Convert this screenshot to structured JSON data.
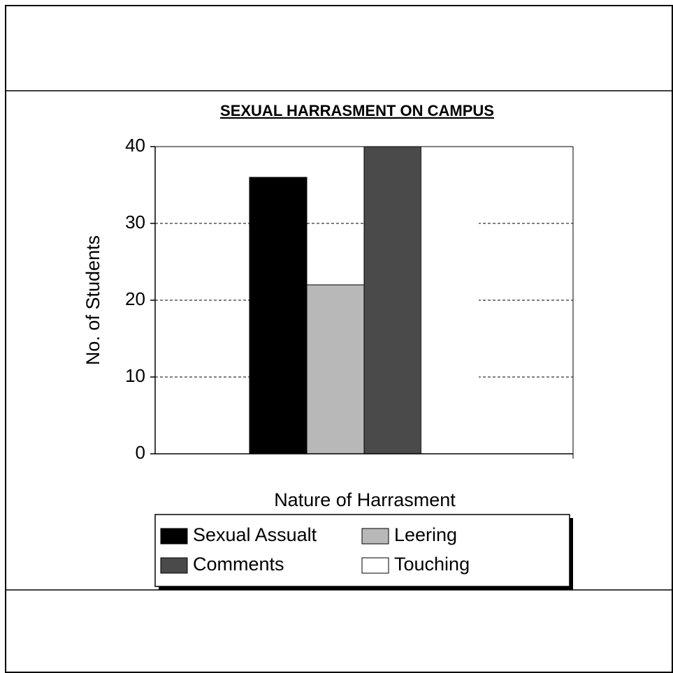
{
  "chart_data": {
    "type": "bar",
    "title": "SEXUAL HARRASMENT ON CAMPUS",
    "x_label": "Nature of Harrasment",
    "y_label": "No. of Students",
    "categories": [
      null
    ],
    "series": [
      {
        "name": "Sexual Assualt",
        "color": "#000000",
        "values": [
          36
        ]
      },
      {
        "name": "Leering",
        "color": "#b8b8b8",
        "values": [
          22
        ]
      },
      {
        "name": "Comments",
        "color": "#4a4a4a",
        "values": [
          40
        ]
      },
      {
        "name": "Touching",
        "color": "#ffffff",
        "values": [
          40
        ]
      }
    ],
    "ylim": [
      0,
      40
    ],
    "yticks": [
      0,
      10,
      20,
      30,
      40
    ],
    "grid": true,
    "legend": "bottom"
  }
}
